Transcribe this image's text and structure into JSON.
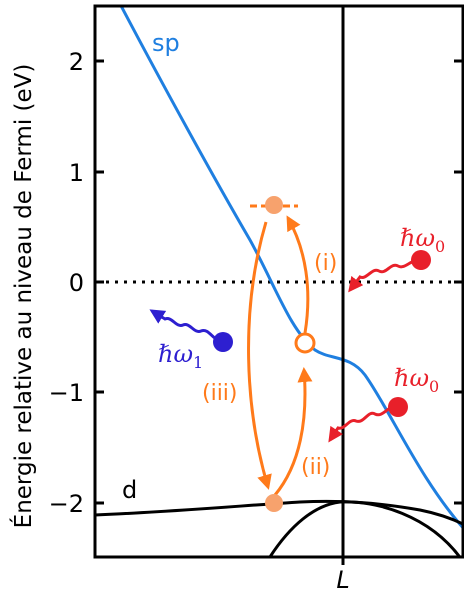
{
  "chart_data": {
    "type": "line",
    "title": "",
    "xlabel_symbol": "L",
    "ylabel": "Énergie relative au niveau de Fermi (eV)",
    "ylim": [
      -2.5,
      2.5
    ],
    "yticks": [
      {
        "value": 2,
        "label": "2"
      },
      {
        "value": 1,
        "label": "1"
      },
      {
        "value": 0,
        "label": "0"
      },
      {
        "value": -1,
        "label": "−1"
      },
      {
        "value": -2,
        "label": "−2"
      }
    ],
    "fermi_level": 0,
    "band_labels": {
      "sp": "sp",
      "d": "d"
    },
    "process_labels": {
      "i": "(i)",
      "ii": "(ii)",
      "iii": "(iii)"
    },
    "photon_labels": {
      "pump_upper": {
        "hbar": "ℏ",
        "omega": "ω",
        "sub": "0"
      },
      "pump_lower": {
        "hbar": "ℏ",
        "omega": "ω",
        "sub": "0"
      },
      "emitted": {
        "hbar": "ℏ",
        "omega": "ω",
        "sub": "1"
      }
    },
    "colors": {
      "sp_band": "#1f7fe0",
      "d_band": "#000000",
      "process": "#ff7a1a",
      "state_fill": "#f7a26d",
      "pump_photon": "#e8202a",
      "emitted_photon": "#2d1fd0"
    },
    "states": [
      {
        "name": "upper-excited",
        "energy": 0.7
      },
      {
        "name": "hole-intermediate",
        "energy": -0.55
      },
      {
        "name": "d-band-state",
        "energy": -2.0
      }
    ]
  }
}
